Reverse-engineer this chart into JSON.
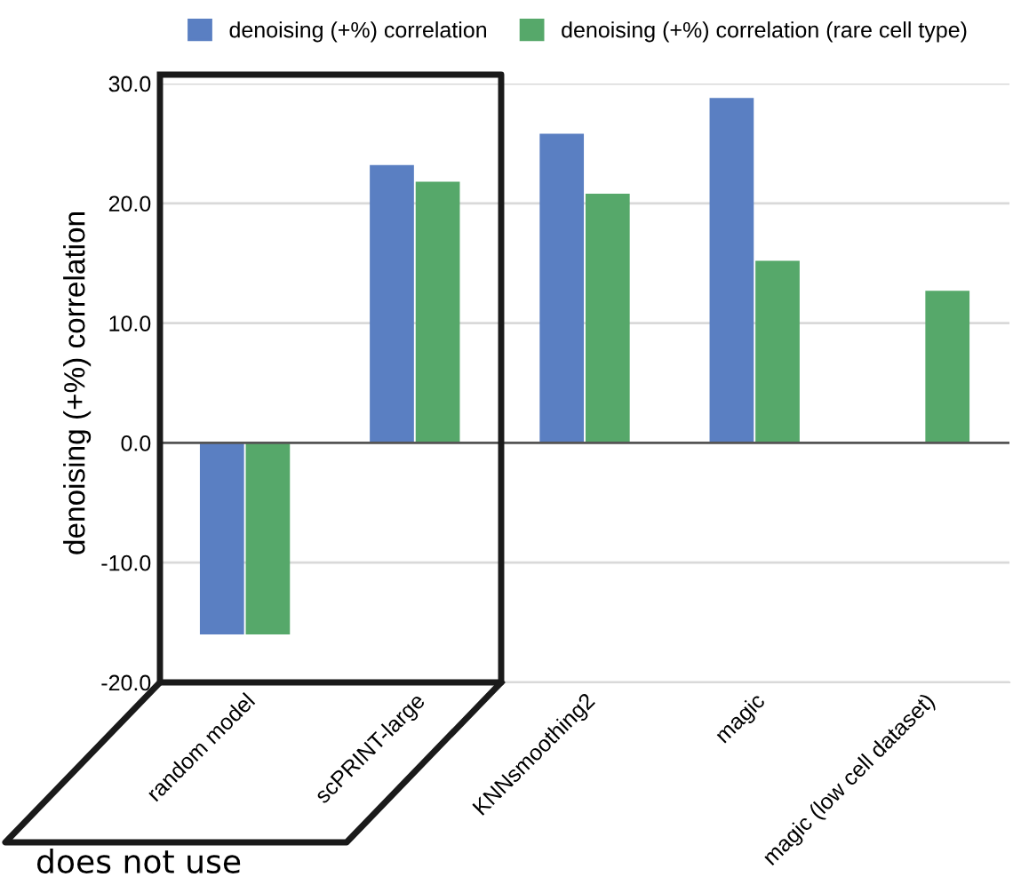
{
  "chart_data": {
    "type": "bar",
    "ylabel": "denoising (+%) correlation",
    "categories": [
      "random model",
      "scPRINT-large",
      "KNNsmoothing2",
      "magic",
      "magic (low cell dataset)"
    ],
    "series": [
      {
        "name": "denoising (+%) correlation",
        "color": "#5a7fc2",
        "values": [
          -16.0,
          23.2,
          25.8,
          28.8,
          null
        ]
      },
      {
        "name": "denoising (+%) correlation (rare cell type)",
        "color": "#56a86a",
        "values": [
          -16.0,
          21.8,
          20.8,
          15.2,
          12.7
        ]
      }
    ],
    "ylim": [
      -20,
      30
    ],
    "yticks": [
      {
        "value": -20,
        "label": "-20.0"
      },
      {
        "value": -10,
        "label": "-10.0"
      },
      {
        "value": 0,
        "label": "0.0"
      },
      {
        "value": 10,
        "label": "10.0"
      },
      {
        "value": 20,
        "label": "20.0"
      },
      {
        "value": 30,
        "label": "30.0"
      }
    ],
    "grid": "y",
    "legend": "top",
    "annotations": [
      "does not use"
    ]
  }
}
